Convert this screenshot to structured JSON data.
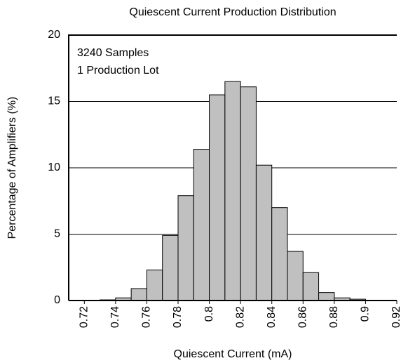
{
  "chart_data": {
    "type": "histogram",
    "title": "Quiescent Current Production Distribution",
    "xlabel": "Quiescent Current (mA)",
    "ylabel": "Percentage of Amplifiers (%)",
    "annotations": [
      "3240 Samples",
      "1 Production Lot"
    ],
    "bins": [
      0.71,
      0.72,
      0.73,
      0.74,
      0.75,
      0.76,
      0.77,
      0.78,
      0.79,
      0.8,
      0.81,
      0.82,
      0.83,
      0.84,
      0.85,
      0.86,
      0.87,
      0.88,
      0.89,
      0.9,
      0.91,
      0.92
    ],
    "values": [
      0,
      0,
      0.05,
      0.2,
      0.9,
      2.3,
      4.9,
      7.9,
      11.4,
      15.5,
      16.5,
      16.1,
      10.2,
      7.0,
      3.7,
      2.1,
      0.6,
      0.2,
      0.1,
      0,
      0
    ],
    "color": "#c0c0c0",
    "xlim": [
      0.71,
      0.92
    ],
    "xticks": [
      0.72,
      0.74,
      0.76,
      0.78,
      0.8,
      0.82,
      0.84,
      0.86,
      0.88,
      0.9,
      0.92
    ],
    "ylim": [
      0,
      20
    ],
    "yticks": [
      0,
      5,
      10,
      15,
      20
    ],
    "grid": true
  }
}
